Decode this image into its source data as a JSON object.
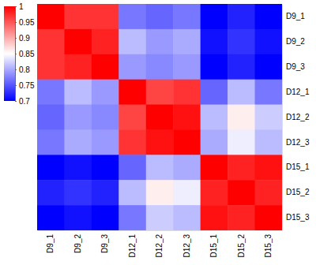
{
  "chart_data": {
    "type": "heatmap",
    "categories": [
      "D9_1",
      "D9_2",
      "D9_3",
      "D12_1",
      "D12_2",
      "D12_3",
      "D15_1",
      "D15_2",
      "D15_3"
    ],
    "values": [
      [
        1.0,
        0.97,
        0.97,
        0.77,
        0.76,
        0.77,
        0.7,
        0.72,
        0.7
      ],
      [
        0.97,
        1.0,
        0.98,
        0.81,
        0.79,
        0.8,
        0.71,
        0.73,
        0.71
      ],
      [
        0.97,
        0.98,
        1.0,
        0.79,
        0.78,
        0.79,
        0.7,
        0.72,
        0.7
      ],
      [
        0.77,
        0.81,
        0.79,
        1.0,
        0.96,
        0.97,
        0.76,
        0.81,
        0.77
      ],
      [
        0.76,
        0.79,
        0.78,
        0.96,
        1.0,
        0.99,
        0.81,
        0.86,
        0.82
      ],
      [
        0.77,
        0.8,
        0.79,
        0.97,
        0.99,
        1.0,
        0.8,
        0.84,
        0.81
      ],
      [
        0.7,
        0.71,
        0.7,
        0.76,
        0.81,
        0.8,
        1.0,
        0.98,
        0.99
      ],
      [
        0.72,
        0.73,
        0.72,
        0.81,
        0.86,
        0.84,
        0.98,
        1.0,
        0.98
      ],
      [
        0.7,
        0.71,
        0.7,
        0.77,
        0.82,
        0.81,
        0.99,
        0.98,
        1.0
      ]
    ],
    "colorbar": {
      "range": [
        0.7,
        1
      ],
      "ticks": [
        0.7,
        0.75,
        0.8,
        0.85,
        0.9,
        0.95,
        1
      ],
      "colors": [
        "#0000ff",
        "#ffffff",
        "#ff0000"
      ]
    }
  }
}
